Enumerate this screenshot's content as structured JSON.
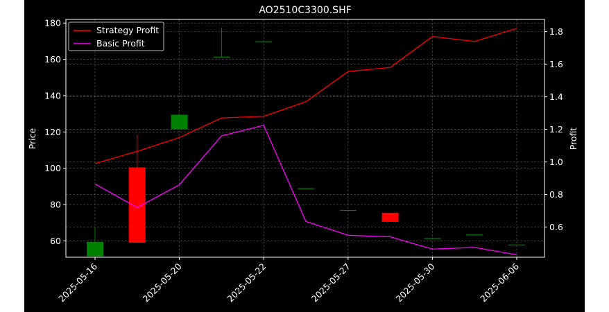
{
  "chart_data": {
    "type": "candlestick+line",
    "title": "AO2510C3300.SHF",
    "ylabel_left": "Price",
    "ylabel_right": "Profit",
    "ylim_left": [
      51,
      182
    ],
    "ylim_right": [
      0.415,
      1.875
    ],
    "yticks_left": [
      60,
      80,
      100,
      120,
      140,
      160,
      180
    ],
    "yticks_right": [
      0.6,
      0.8,
      1.0,
      1.2,
      1.4,
      1.6,
      1.8
    ],
    "x_tick_labels": [
      "2025-05-16",
      "2025-05-20",
      "2025-05-22",
      "2025-05-27",
      "2025-05-30",
      "2025-06-06"
    ],
    "x_tick_indices": [
      0,
      2,
      4,
      6,
      8,
      10
    ],
    "grid": true,
    "legend_position": "top-left",
    "candles": [
      {
        "open": 51.5,
        "close": 59.5,
        "high": 67.5,
        "low": 51.5
      },
      {
        "open": 100.5,
        "close": 59.0,
        "high": 118.5,
        "low": 59.0
      },
      {
        "open": 121.5,
        "close": 129.5,
        "high": 129.5,
        "low": 121.5
      },
      {
        "open": 161.5,
        "close": 161.5,
        "high": 177.5,
        "low": 161.5
      },
      {
        "open": 170.0,
        "close": 170.0,
        "high": 170.0,
        "low": 170.0
      },
      {
        "open": 89.0,
        "close": 89.0,
        "high": 89.0,
        "low": 89.0
      },
      {
        "open": 77.0,
        "close": 77.0,
        "high": 77.0,
        "low": 77.0
      },
      {
        "open": 75.5,
        "close": 70.5,
        "high": 75.5,
        "low": 70.5
      },
      {
        "open": 61.5,
        "close": 61.5,
        "high": 61.5,
        "low": 61.5
      },
      {
        "open": 63.5,
        "close": 63.5,
        "high": 63.5,
        "low": 63.5
      },
      {
        "open": 58.0,
        "close": 58.0,
        "high": 58.0,
        "low": 58.0
      }
    ],
    "series": [
      {
        "name": "Strategy Profit",
        "color": "#ff0000",
        "values": [
          0.99,
          1.065,
          1.15,
          1.27,
          1.28,
          1.37,
          1.555,
          1.58,
          1.77,
          1.74,
          1.82
        ]
      },
      {
        "name": "Basic Profit",
        "color": "#ff00ff",
        "values": [
          0.865,
          0.72,
          0.86,
          1.16,
          1.225,
          0.635,
          0.55,
          0.54,
          0.465,
          0.475,
          0.43
        ]
      }
    ],
    "colors": {
      "up": "#008000",
      "down": "#ff0000",
      "background": "#000000",
      "text": "#ffffff"
    }
  }
}
